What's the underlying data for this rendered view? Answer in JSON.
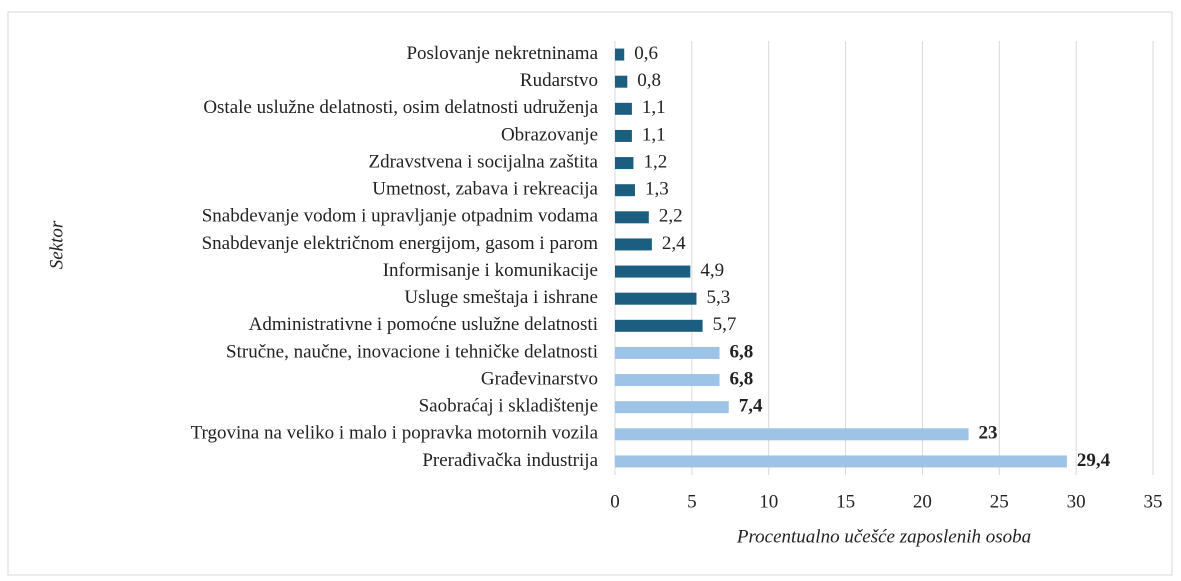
{
  "chart_data": {
    "type": "bar",
    "orientation": "horizontal",
    "y_label": "Sektor",
    "x_label": "Procentualno učešće zaposlenih osoba",
    "categories": [
      "Poslovanje nekretninama",
      "Rudarstvo",
      "Ostale uslužne delatnosti, osim delatnosti udruženja",
      "Obrazovanje",
      "Zdravstvena i socijalna zaštita",
      "Umetnost, zabava i rekreacija",
      "Snabdevanje vodom i upravljanje otpadnim vodama",
      "Snabdevanje električnom energijom, gasom i parom",
      "Informisanje i komunikacije",
      "Usluge smeštaja i ishrane",
      "Administrativne i pomoćne uslužne delatnosti",
      "Stručne, naučne, inovacione i tehničke delatnosti",
      "Građevinarstvo",
      "Saobraćaj i skladištenje",
      "Trgovina na veliko i malo i popravka motornih vozila",
      "Prerađivačka industrija"
    ],
    "values": [
      0.6,
      0.8,
      1.1,
      1.1,
      1.2,
      1.3,
      2.2,
      2.4,
      4.9,
      5.3,
      5.7,
      6.8,
      6.8,
      7.4,
      23,
      29.4
    ],
    "value_labels": [
      "0,6",
      "0,8",
      "1,1",
      "1,1",
      "1,2",
      "1,3",
      "2,2",
      "2,4",
      "4,9",
      "5,3",
      "5,7",
      "6,8",
      "6,8",
      "7,4",
      "23",
      "29,4"
    ],
    "colors": [
      "#1b5e7f",
      "#1b5e7f",
      "#1b5e7f",
      "#1b5e7f",
      "#1b5e7f",
      "#1b5e7f",
      "#1b5e7f",
      "#1b5e7f",
      "#1b5e7f",
      "#1b5e7f",
      "#1b5e7f",
      "#9dc3e6",
      "#9dc3e6",
      "#9dc3e6",
      "#9dc3e6",
      "#9dc3e6"
    ],
    "label_bold": [
      false,
      false,
      false,
      false,
      false,
      false,
      false,
      false,
      false,
      false,
      false,
      true,
      true,
      true,
      true,
      true
    ],
    "xlim": [
      0,
      35
    ],
    "xticks": [
      0,
      5,
      10,
      15,
      20,
      25,
      30,
      35
    ],
    "grid": true
  }
}
